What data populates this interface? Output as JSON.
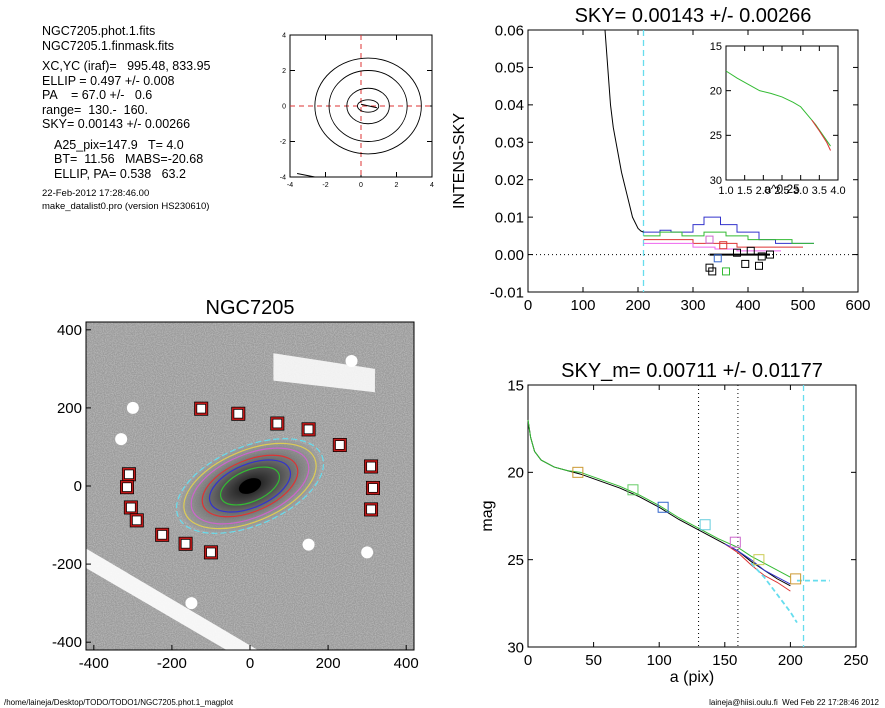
{
  "info": {
    "file1": "NGC7205.phot.1.fits",
    "file2": "NGC7205.1.finmask.fits",
    "xcyc": "XC,YC (iraf)=   995.48, 833.95",
    "ellip": "ELLIP = 0.497 +/- 0.008",
    "pa": "PA    = 67.0 +/-   0.6",
    "range": "range=  130.-  160.",
    "sky": "SKY= 0.00143 +/- 0.00266",
    "a25": "A25_pix=147.9   T= 4.0",
    "bt": "BT=  11.56   MABS=-20.68",
    "ellip_pa": "ELLIP, PA= 0.538   63.2",
    "date": "22-Feb-2012 17:28:46.00",
    "program": "make_datalist0.pro (version HS230610)"
  },
  "footer": {
    "left": "/home/laineja/Desktop/TODO/TODO1/NGC7205.phot.1_magplot",
    "right": "laineja@hiisi.oulu.fi  Wed Feb 22 17:28:46 2012"
  },
  "chart_data": [
    {
      "type": "line",
      "name": "contour_mini",
      "xlim": [
        -4,
        4
      ],
      "ylim": [
        -4,
        4
      ],
      "xticks": [
        "-4",
        "-2",
        "0",
        "2",
        "4"
      ],
      "yticks": [
        "-4",
        "-2",
        "0",
        "2",
        "4"
      ],
      "contours": [
        {
          "cx": 0.4,
          "cy": 0.0,
          "rx": 0.6,
          "ry": 0.35
        },
        {
          "cx": 0.4,
          "cy": 0.0,
          "rx": 1.2,
          "ry": 1.0
        },
        {
          "cx": 0.4,
          "cy": 0.0,
          "rx": 2.2,
          "ry": 2.0
        },
        {
          "cx": 0.4,
          "cy": 0.0,
          "rx": 3.0,
          "ry": 2.7
        }
      ],
      "ref_lines": {
        "x": 0,
        "y": 0,
        "color": "#dd3333"
      }
    },
    {
      "type": "line",
      "name": "sky_profile",
      "title": "SKY= 0.00143 +/- 0.00266",
      "xlabel": "",
      "ylabel": "INTENS-SKY",
      "xlim": [
        0,
        600
      ],
      "ylim": [
        -0.01,
        0.06
      ],
      "xticks": [
        "0",
        "100",
        "200",
        "300",
        "400",
        "500",
        "600"
      ],
      "yticks": [
        "-0.01",
        "0.00",
        "0.01",
        "0.02",
        "0.03",
        "0.04",
        "0.05",
        "0.06"
      ],
      "vline": {
        "x": 210,
        "color": "#66ddee"
      },
      "profile": {
        "x": [
          140,
          145,
          150,
          155,
          160,
          165,
          170,
          175,
          180,
          185,
          190,
          195,
          200,
          205,
          210
        ],
        "y": [
          0.06,
          0.05,
          0.04,
          0.034,
          0.03,
          0.026,
          0.022,
          0.019,
          0.016,
          0.013,
          0.01,
          0.0085,
          0.007,
          0.0063,
          0.006
        ]
      },
      "series": [
        {
          "color": "#3333cc",
          "x": [
            210,
            240,
            260,
            300,
            320,
            350,
            380,
            420,
            450,
            480,
            520
          ],
          "y": [
            0.006,
            0.0065,
            0.006,
            0.008,
            0.01,
            0.008,
            0.006,
            0.004,
            0.003,
            0.003,
            0.003
          ]
        },
        {
          "color": "#33bb33",
          "x": [
            210,
            240,
            280,
            320,
            360,
            400,
            440,
            480,
            520
          ],
          "y": [
            0.005,
            0.006,
            0.005,
            0.006,
            0.005,
            0.004,
            0.004,
            0.003,
            0.003
          ]
        },
        {
          "color": "#dd3333",
          "x": [
            210,
            260,
            300,
            340,
            380,
            420,
            460,
            500
          ],
          "y": [
            0.004,
            0.004,
            0.003,
            0.003,
            0.002,
            0.002,
            0.002,
            0.002
          ]
        },
        {
          "color": "#ee66ee",
          "x": [
            210,
            260,
            300,
            340,
            380,
            420,
            460
          ],
          "y": [
            0.003,
            0.003,
            0.002,
            0.0015,
            0.001,
            0.001,
            0.001
          ]
        }
      ],
      "squares": [
        {
          "x": 330,
          "y": 0.004,
          "color": "#cc66cc"
        },
        {
          "x": 355,
          "y": 0.0025,
          "color": "#dd3333"
        },
        {
          "x": 380,
          "y": 0.0005,
          "color": "#000000"
        },
        {
          "x": 405,
          "y": 0.001,
          "color": "#000000"
        },
        {
          "x": 425,
          "y": -0.0005,
          "color": "#000000"
        },
        {
          "x": 440,
          "y": 0.0,
          "color": "#000000"
        },
        {
          "x": 395,
          "y": -0.0025,
          "color": "#000000"
        },
        {
          "x": 420,
          "y": -0.003,
          "color": "#000000"
        },
        {
          "x": 330,
          "y": -0.0035,
          "color": "#000000"
        },
        {
          "x": 335,
          "y": -0.0045,
          "color": "#000000"
        },
        {
          "x": 360,
          "y": -0.0045,
          "color": "#33bb33"
        },
        {
          "x": 345,
          "y": -0.001,
          "color": "#3366cc"
        }
      ]
    },
    {
      "type": "line",
      "name": "sky_inset",
      "xlabel": "a^0.25",
      "xlim": [
        1.0,
        4.0
      ],
      "ylim": [
        15,
        30
      ],
      "y_inverted": true,
      "xticks": [
        "1.0",
        "1.5",
        "2.0",
        "2.5",
        "3.0",
        "3.5",
        "4.0"
      ],
      "yticks": [
        "15",
        "20",
        "25",
        "30"
      ],
      "series": [
        {
          "color": "#33bb33",
          "x": [
            1.0,
            1.3,
            1.6,
            1.9,
            2.2,
            2.5,
            2.8,
            3.0,
            3.2,
            3.4,
            3.6,
            3.8
          ],
          "y": [
            17.8,
            18.6,
            19.3,
            20.0,
            20.3,
            20.7,
            21.3,
            21.8,
            22.8,
            23.8,
            25.0,
            26.2
          ]
        },
        {
          "color": "#dd3333",
          "x": [
            3.3,
            3.5,
            3.7,
            3.8
          ],
          "y": [
            23.3,
            24.5,
            25.8,
            26.7
          ]
        }
      ]
    },
    {
      "type": "line",
      "name": "mag_profile",
      "title": "SKY_m=  0.00711 +/- 0.01177",
      "xlabel": "a (pix)",
      "ylabel": "mag",
      "xlim": [
        0,
        250
      ],
      "ylim": [
        15,
        30
      ],
      "y_inverted": true,
      "xticks": [
        "0",
        "50",
        "100",
        "150",
        "200",
        "250"
      ],
      "yticks": [
        "15",
        "20",
        "25",
        "30"
      ],
      "vlines_dotted": [
        130,
        160
      ],
      "vline": {
        "x": 210,
        "color": "#66ddee"
      },
      "series": [
        {
          "color": "#000000",
          "x": [
            0,
            2,
            5,
            10,
            20,
            30,
            40,
            55,
            70,
            85,
            100,
            115,
            130,
            145,
            160,
            170,
            180,
            190,
            200
          ],
          "y": [
            17.0,
            18.0,
            18.8,
            19.3,
            19.7,
            19.9,
            20.1,
            20.5,
            20.9,
            21.4,
            22.0,
            22.7,
            23.3,
            23.9,
            24.5,
            25.1,
            25.6,
            26.1,
            26.5
          ]
        },
        {
          "color": "#33bb33",
          "x": [
            0,
            2,
            5,
            10,
            20,
            30,
            40,
            55,
            70,
            85,
            100,
            115,
            130,
            145,
            160,
            170,
            180,
            190,
            200
          ],
          "y": [
            17.0,
            18.0,
            18.8,
            19.3,
            19.7,
            19.9,
            20.0,
            20.4,
            20.8,
            21.3,
            21.9,
            22.6,
            23.2,
            23.8,
            24.3,
            24.8,
            25.2,
            25.6,
            26.0
          ]
        },
        {
          "color": "#dd3333",
          "x": [
            150,
            160,
            170,
            180,
            190,
            200
          ],
          "y": [
            24.1,
            24.6,
            25.3,
            25.9,
            26.3,
            26.8
          ]
        },
        {
          "color": "#3333cc",
          "x": [
            150,
            160,
            170,
            180,
            190,
            200
          ],
          "y": [
            24.1,
            24.5,
            25.0,
            25.6,
            26.0,
            26.4
          ]
        },
        {
          "color": "#66ddee",
          "x": [
            170,
            180,
            190,
            200,
            205
          ],
          "y": [
            25.2,
            26.0,
            27.0,
            28.0,
            28.6
          ],
          "dashed": true
        },
        {
          "color": "#66ddee",
          "x": [
            205,
            230
          ],
          "y": [
            26.2,
            26.2
          ],
          "dashed": true
        }
      ],
      "squares": [
        {
          "x": 38,
          "y": 20.0,
          "color": "#cc9933"
        },
        {
          "x": 80,
          "y": 21.0,
          "color": "#66cc66"
        },
        {
          "x": 103,
          "y": 22.0,
          "color": "#3366cc"
        },
        {
          "x": 135,
          "y": 23.0,
          "color": "#66ccdd"
        },
        {
          "x": 158,
          "y": 24.0,
          "color": "#cc66cc"
        },
        {
          "x": 176,
          "y": 25.0,
          "color": "#cccc55"
        },
        {
          "x": 204,
          "y": 26.1,
          "color": "#cc9933"
        }
      ]
    },
    {
      "type": "scatter",
      "name": "galaxy_image",
      "title": "NGC7205",
      "xlim": [
        -420,
        420
      ],
      "ylim": [
        -420,
        420
      ],
      "xticks": [
        "-400",
        "-200",
        "0",
        "200",
        "400"
      ],
      "yticks": [
        "400",
        "200",
        "0",
        "-200",
        "-400"
      ],
      "mask_boxes": [
        {
          "x": -125,
          "y": 198
        },
        {
          "x": -30,
          "y": 185
        },
        {
          "x": 70,
          "y": 160
        },
        {
          "x": 150,
          "y": 145
        },
        {
          "x": 230,
          "y": 105
        },
        {
          "x": 310,
          "y": 50
        },
        {
          "x": 315,
          "y": -5
        },
        {
          "x": 310,
          "y": -60
        },
        {
          "x": -310,
          "y": 30
        },
        {
          "x": -315,
          "y": -3
        },
        {
          "x": -305,
          "y": -55
        },
        {
          "x": -290,
          "y": -88
        },
        {
          "x": -225,
          "y": -125
        },
        {
          "x": -165,
          "y": -148
        },
        {
          "x": -100,
          "y": -170
        }
      ],
      "ellipses": [
        {
          "a": 200,
          "ellip": 0.497,
          "pa": 67.0,
          "color": "#66ddee",
          "dashed": true
        },
        {
          "a": 180,
          "ellip": 0.497,
          "pa": 67.0,
          "color": "#ddcc55"
        },
        {
          "a": 160,
          "ellip": 0.497,
          "pa": 67.0,
          "color": "#cc66cc"
        },
        {
          "a": 130,
          "ellip": 0.497,
          "pa": 67.0,
          "color": "#dd3333"
        },
        {
          "a": 110,
          "ellip": 0.497,
          "pa": 67.0,
          "color": "#3333cc"
        },
        {
          "a": 80,
          "ellip": 0.497,
          "pa": 67.0,
          "color": "#33bb33"
        }
      ]
    }
  ]
}
